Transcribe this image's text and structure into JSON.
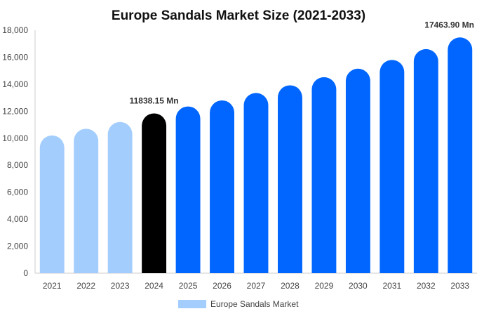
{
  "chart_data": {
    "type": "bar",
    "title": "Europe Sandals Market Size (2021-2033)",
    "categories": [
      "2021",
      "2022",
      "2023",
      "2024",
      "2025",
      "2026",
      "2027",
      "2028",
      "2029",
      "2030",
      "2031",
      "2032",
      "2033"
    ],
    "series": [
      {
        "name": "Europe Sandals Market",
        "values": [
          10200,
          10700,
          11200,
          11838.15,
          12350,
          12800,
          13350,
          13920,
          14520,
          15150,
          15800,
          16600,
          17463.9
        ]
      }
    ],
    "data_labels": [
      {
        "category": "2024",
        "text": "11838.15 Mn"
      },
      {
        "category": "2033",
        "text": "17463.90 Mn"
      }
    ],
    "yticks": [
      "0",
      "2,000",
      "4,000",
      "6,000",
      "8,000",
      "10,000",
      "12,000",
      "14,000",
      "16,000",
      "18,000"
    ],
    "ylim": [
      0,
      18000
    ],
    "xlabel": "",
    "ylabel": "",
    "grid": false,
    "legend": "bottom-center",
    "colors": {
      "historical": "#a3cdfd",
      "current": "#000000",
      "forecast": "#0066ff",
      "legend_swatch": "#a3cdfd"
    },
    "bar_color_group": [
      "historical",
      "historical",
      "historical",
      "current",
      "forecast",
      "forecast",
      "forecast",
      "forecast",
      "forecast",
      "forecast",
      "forecast",
      "forecast",
      "forecast"
    ]
  }
}
